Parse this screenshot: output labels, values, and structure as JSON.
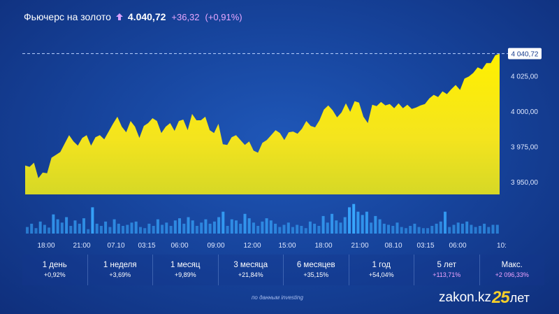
{
  "header": {
    "title": "Фьючерс на золото",
    "price": "4.040,72",
    "change": "+36,32",
    "change_pct": "(+0,91%)",
    "arrow_icon": "arrow-up-icon",
    "accent_color": "#d9a0ff"
  },
  "chart_data": {
    "type": "area",
    "fill_color": "#f4e41e",
    "current_value": 4040.72,
    "current_value_label": "4 040,72",
    "ylim": [
      3941,
      4044
    ],
    "y_ticks": [
      "4 025,00",
      "4 000,00",
      "3 975,00",
      "3 950,00"
    ],
    "y_tick_values": [
      4025,
      4000,
      3975,
      3950
    ],
    "x_ticks": [
      "18:00",
      "21:00",
      "07.10",
      "03:15",
      "06:00",
      "09:00",
      "12:00",
      "15:00",
      "18:00",
      "21:00",
      "08.10",
      "03:15",
      "06:00",
      "10:"
    ],
    "series": [
      {
        "values": [
          3961.5,
          3960.5,
          3963.5,
          3952.5,
          3956.5,
          3956.0,
          3967.0,
          3969.0,
          3971.0,
          3977.0,
          3983.0,
          3978.5,
          3975.5,
          3981.0,
          3983.0,
          3975.5,
          3981.5,
          3983.0,
          3980.0,
          3985.5,
          3991.0,
          3996.0,
          3989.0,
          3985.0,
          3993.0,
          3989.0,
          3981.0,
          3989.5,
          3991.5,
          3995.0,
          3993.0,
          3984.5,
          3989.0,
          3991.5,
          3986.0,
          3993.0,
          3994.0,
          3986.5,
          3998.0,
          3993.5,
          3993.5,
          3996.0,
          3986.5,
          3984.5,
          3991.0,
          3976.5,
          3976.0,
          3981.5,
          3983.0,
          3979.5,
          3976.0,
          3978.5,
          3972.0,
          3970.5,
          3977.5,
          3979.5,
          3983.0,
          3986.5,
          3984.5,
          3979.5,
          3985.0,
          3985.5,
          3984.0,
          3987.5,
          3993.0,
          3989.5,
          3988.5,
          3993.5,
          4001.0,
          4004.0,
          4000.5,
          3995.5,
          3999.0,
          4005.5,
          3999.5,
          4007.0,
          4006.0,
          3996.0,
          3991.5,
          4004.5,
          4003.5,
          4006.5,
          4004.0,
          4005.0,
          4002.0,
          4005.5,
          4002.0,
          4004.5,
          4001.5,
          4002.5,
          4004.0,
          4005.0,
          4009.0,
          4011.5,
          4010.0,
          4014.0,
          4012.0,
          4015.5,
          4018.5,
          4015.0,
          4023.0,
          4024.5,
          4027.0,
          4031.0,
          4029.5,
          4034.0,
          4034.0,
          4039.5,
          4040.72
        ]
      }
    ],
    "volume": [
      12,
      18,
      10,
      22,
      16,
      11,
      35,
      26,
      20,
      30,
      14,
      24,
      18,
      28,
      8,
      48,
      18,
      14,
      22,
      12,
      26,
      18,
      14,
      16,
      20,
      22,
      12,
      10,
      18,
      14,
      26,
      16,
      20,
      14,
      24,
      28,
      18,
      30,
      24,
      14,
      20,
      26,
      18,
      22,
      30,
      40,
      14,
      26,
      24,
      18,
      36,
      28,
      20,
      14,
      22,
      28,
      24,
      18,
      12,
      16,
      20,
      12,
      16,
      14,
      10,
      22,
      18,
      14,
      32,
      20,
      36,
      24,
      20,
      30,
      48,
      54,
      40,
      34,
      40,
      20,
      32,
      26,
      18,
      16,
      14,
      20,
      12,
      10,
      14,
      18,
      12,
      10,
      10,
      14,
      18,
      22,
      40,
      12,
      16,
      20,
      18,
      22,
      16,
      12,
      14,
      18,
      12,
      16,
      16
    ],
    "volume_color": "#38a8ff"
  },
  "periods": [
    {
      "label": "1 день",
      "change": "+0,92%",
      "highlight": false
    },
    {
      "label": "1 неделя",
      "change": "+3,69%",
      "highlight": false
    },
    {
      "label": "1 месяц",
      "change": "+9,89%",
      "highlight": false
    },
    {
      "label": "3 месяца",
      "change": "+21,84%",
      "highlight": false
    },
    {
      "label": "6 месяцев",
      "change": "+35,15%",
      "highlight": false
    },
    {
      "label": "1 год",
      "change": "+54,04%",
      "highlight": false
    },
    {
      "label": "5 лет",
      "change": "+113,71%",
      "highlight": true
    },
    {
      "label": "Макс.",
      "change": "+2 096,33%",
      "highlight": true
    }
  ],
  "footer": {
    "source": "по данным investing",
    "logo_text": "zakon.kz",
    "logo_number": "25",
    "logo_suffix": "лет",
    "logo_accent": "#f5cf2a"
  }
}
